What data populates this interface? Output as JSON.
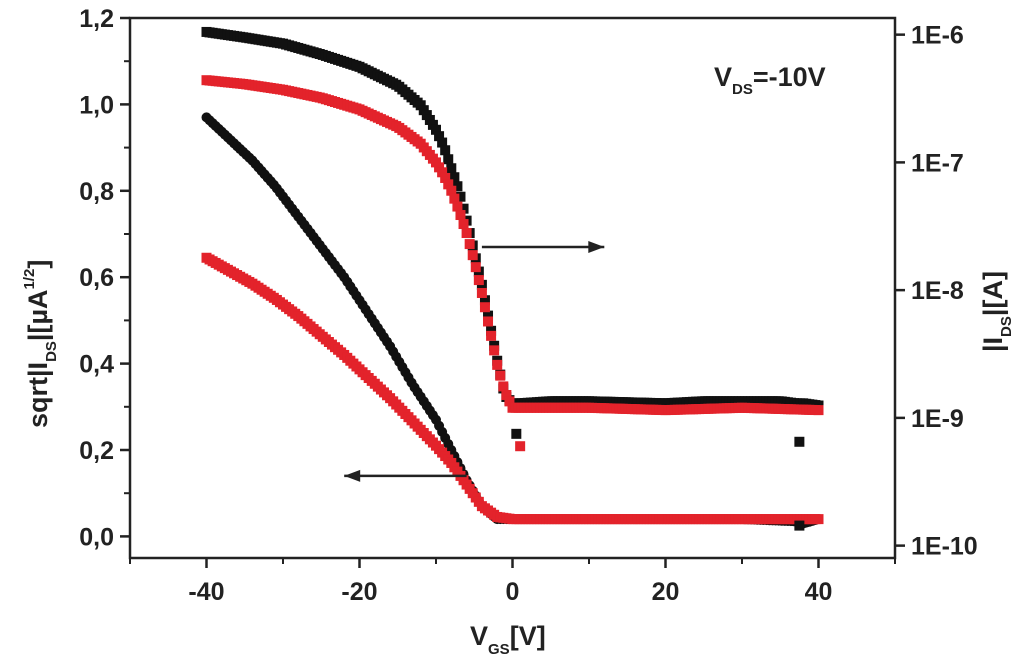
{
  "chart_data": {
    "type": "scatter",
    "annotation": {
      "main": "V",
      "sub": "DS",
      "rest": "=-10V"
    },
    "x_axis": {
      "title": {
        "main": "V",
        "sub": "GS",
        "rest": "[V]"
      },
      "range": [
        -50,
        50
      ],
      "ticks": [
        -40,
        -20,
        0,
        20,
        40
      ],
      "tick_labels": [
        "-40",
        "-20",
        "0",
        "20",
        "40"
      ]
    },
    "y_left": {
      "title": {
        "pre": "sqrt|I",
        "sub": "DS",
        "mid": "|[µA",
        "sup": "1/2",
        "post": "]"
      },
      "range": [
        -0.05,
        1.2
      ],
      "ticks": [
        0.0,
        0.2,
        0.4,
        0.6,
        0.8,
        1.0,
        1.2
      ],
      "tick_labels": [
        "0,0",
        "0,2",
        "0,4",
        "0,6",
        "0,8",
        "1,0",
        "1,2"
      ]
    },
    "y_right": {
      "title": {
        "pre": "|I",
        "sub": "DS",
        "post": "|[A]"
      },
      "scale": "log",
      "range": [
        8e-11,
        1.35e-06
      ],
      "ticks": [
        1e-10,
        1e-09,
        1e-08,
        1e-07,
        1e-06
      ],
      "tick_labels": [
        "1E-10",
        "1E-9",
        "1E-8",
        "1E-7",
        "1E-6"
      ]
    },
    "arrows": [
      {
        "name": "left-axis-arrow",
        "from": [
          -6,
          0.14
        ],
        "to": [
          -22,
          0.14
        ],
        "axis": "left",
        "direction": "left"
      },
      {
        "name": "right-axis-arrow",
        "from": [
          -4,
          0.67
        ],
        "to": [
          12,
          0.67
        ],
        "axis": "left",
        "direction": "right"
      }
    ],
    "series": [
      {
        "name": "sqrt-black",
        "axis": "left",
        "color": "#111111",
        "marker": "circle",
        "points": [
          [
            -40,
            0.97
          ],
          [
            -37,
            0.92
          ],
          [
            -34,
            0.87
          ],
          [
            -31,
            0.81
          ],
          [
            -28,
            0.74
          ],
          [
            -25,
            0.67
          ],
          [
            -22,
            0.6
          ],
          [
            -19,
            0.52
          ],
          [
            -16,
            0.44
          ],
          [
            -13,
            0.35
          ],
          [
            -10,
            0.27
          ],
          [
            -8,
            0.2
          ],
          [
            -6,
            0.13
          ],
          [
            -4,
            0.07
          ],
          [
            -2,
            0.04
          ],
          [
            0,
            0.04
          ],
          [
            5,
            0.04
          ],
          [
            10,
            0.04
          ],
          [
            20,
            0.04
          ],
          [
            30,
            0.04
          ],
          [
            37,
            0.035
          ],
          [
            38,
            0.03
          ],
          [
            40,
            0.04
          ]
        ]
      },
      {
        "name": "sqrt-red",
        "axis": "left",
        "color": "#e3232b",
        "marker": "square",
        "points": [
          [
            -40,
            0.645
          ],
          [
            -37,
            0.615
          ],
          [
            -34,
            0.585
          ],
          [
            -31,
            0.55
          ],
          [
            -28,
            0.51
          ],
          [
            -25,
            0.465
          ],
          [
            -22,
            0.42
          ],
          [
            -19,
            0.37
          ],
          [
            -16,
            0.32
          ],
          [
            -13,
            0.265
          ],
          [
            -10,
            0.21
          ],
          [
            -8,
            0.17
          ],
          [
            -6,
            0.12
          ],
          [
            -4,
            0.07
          ],
          [
            -2,
            0.045
          ],
          [
            0,
            0.04
          ],
          [
            5,
            0.04
          ],
          [
            10,
            0.04
          ],
          [
            20,
            0.04
          ],
          [
            30,
            0.04
          ],
          [
            40,
            0.04
          ]
        ]
      },
      {
        "name": "log-black",
        "axis": "right",
        "color": "#111111",
        "marker": "square",
        "points": [
          [
            -40,
            1.05e-06
          ],
          [
            -35,
            9.5e-07
          ],
          [
            -30,
            8.5e-07
          ],
          [
            -25,
            7e-07
          ],
          [
            -20,
            5.6e-07
          ],
          [
            -15,
            4e-07
          ],
          [
            -12,
            2.8e-07
          ],
          [
            -10,
            1.8e-07
          ],
          [
            -9,
            1.35e-07
          ],
          [
            -8,
            9e-08
          ],
          [
            -7,
            6e-08
          ],
          [
            -6,
            3.5e-08
          ],
          [
            -5,
            2e-08
          ],
          [
            -4,
            1.1e-08
          ],
          [
            -3,
            5.5e-09
          ],
          [
            -2,
            2.8e-09
          ],
          [
            -1,
            1.5e-09
          ],
          [
            0,
            1.3e-09
          ],
          [
            1,
            1.3e-09
          ],
          [
            5,
            1.35e-09
          ],
          [
            10,
            1.35e-09
          ],
          [
            20,
            1.3e-09
          ],
          [
            25,
            1.35e-09
          ],
          [
            30,
            1.35e-09
          ],
          [
            35,
            1.35e-09
          ],
          [
            37,
            1.3e-09
          ],
          [
            38,
            1.3e-09
          ],
          [
            40,
            1.25e-09
          ]
        ]
      },
      {
        "name": "log-red",
        "axis": "right",
        "color": "#e3232b",
        "marker": "square",
        "points": [
          [
            -40,
            4.4e-07
          ],
          [
            -35,
            4.1e-07
          ],
          [
            -30,
            3.7e-07
          ],
          [
            -25,
            3.2e-07
          ],
          [
            -20,
            2.6e-07
          ],
          [
            -15,
            1.9e-07
          ],
          [
            -12,
            1.4e-07
          ],
          [
            -10,
            1e-07
          ],
          [
            -9,
            8e-08
          ],
          [
            -8,
            6e-08
          ],
          [
            -7,
            4.2e-08
          ],
          [
            -6,
            2.8e-08
          ],
          [
            -5,
            1.7e-08
          ],
          [
            -4,
            9.5e-09
          ],
          [
            -3,
            5e-09
          ],
          [
            -2,
            2.6e-09
          ],
          [
            -1,
            1.6e-09
          ],
          [
            0,
            1.2e-09
          ],
          [
            5,
            1.2e-09
          ],
          [
            10,
            1.2e-09
          ],
          [
            20,
            1.15e-09
          ],
          [
            30,
            1.2e-09
          ],
          [
            40,
            1.15e-09
          ]
        ]
      }
    ],
    "outliers": [
      {
        "series": "sqrt-black",
        "axis": "left",
        "x": 37.5,
        "y": 0.025
      },
      {
        "series": "log-black",
        "axis": "right",
        "x": 0.5,
        "y": 7.5e-10
      },
      {
        "series": "log-black",
        "axis": "right",
        "x": 37.5,
        "y": 6.5e-10
      },
      {
        "series": "log-red",
        "axis": "right",
        "x": 1,
        "y": 6e-10
      }
    ]
  }
}
